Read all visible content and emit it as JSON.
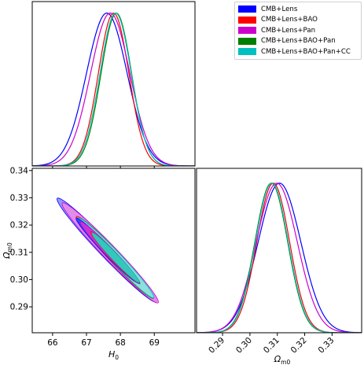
{
  "legend": {
    "items": [
      {
        "label": "CMB+Lens",
        "color": "#0000ff"
      },
      {
        "label": "CMB+Lens+BAO",
        "color": "#ff0000"
      },
      {
        "label": "CMB+Lens+Pan",
        "color": "#cc00cc"
      },
      {
        "label": "CMB+Lens+BAO+Pan",
        "color": "#008000"
      },
      {
        "label": "CMB+Lens+BAO+Pan+CC",
        "color": "#00c0c0"
      }
    ]
  },
  "chart_data": {
    "type": "line",
    "layout": "corner",
    "parameters": [
      {
        "name": "H_0",
        "label_main": "H",
        "label_sub": "0",
        "range": [
          65.4,
          70.2
        ],
        "ticks": [
          "66",
          "67",
          "68",
          "69"
        ]
      },
      {
        "name": "Omega_m0",
        "label_main": "Ω",
        "label_sub": "m0",
        "range": [
          0.2805,
          0.3408
        ],
        "ticks": [
          "0.29",
          "0.30",
          "0.31",
          "0.32",
          "0.33"
        ],
        "ticks_left": [
          "0.29",
          "0.30",
          "0.31",
          "0.32",
          "0.33",
          "0.34"
        ]
      }
    ],
    "series": [
      {
        "name": "CMB+Lens",
        "color": "#0000ff",
        "H0_mean": 67.6,
        "H0_sigma": 0.6,
        "Om_mean": 0.3108,
        "Om_sigma": 0.0078,
        "corr": -0.98
      },
      {
        "name": "CMB+Lens+BAO",
        "color": "#ff0000",
        "H0_mean": 67.8,
        "H0_sigma": 0.45,
        "Om_mean": 0.3085,
        "Om_sigma": 0.006,
        "corr": -0.98
      },
      {
        "name": "CMB+Lens+Pan",
        "color": "#cc00cc",
        "H0_mean": 67.7,
        "H0_sigma": 0.58,
        "Om_mean": 0.3098,
        "Om_sigma": 0.0075,
        "corr": -0.98
      },
      {
        "name": "CMB+Lens+BAO+Pan",
        "color": "#008000",
        "H0_mean": 67.88,
        "H0_sigma": 0.45,
        "Om_mean": 0.3078,
        "Om_sigma": 0.006,
        "corr": -0.98
      },
      {
        "name": "CMB+Lens+BAO+Pan+CC",
        "color": "#00c0c0",
        "H0_mean": 67.86,
        "H0_sigma": 0.46,
        "Om_mean": 0.308,
        "Om_sigma": 0.006,
        "corr": -0.98
      }
    ],
    "grid": false,
    "legend_position": "top-right"
  }
}
